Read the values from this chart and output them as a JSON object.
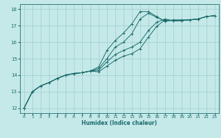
{
  "xlabel": "Humidex (Indice chaleur)",
  "bg_color": "#c5e8e8",
  "line_color": "#1a6b6b",
  "grid_color": "#9ecece",
  "xlim": [
    -0.5,
    23.5
  ],
  "ylim": [
    11.7,
    18.3
  ],
  "xticks": [
    0,
    1,
    2,
    3,
    4,
    5,
    6,
    7,
    8,
    9,
    10,
    11,
    12,
    13,
    14,
    15,
    16,
    17,
    18,
    19,
    20,
    21,
    22,
    23
  ],
  "yticks": [
    12,
    13,
    14,
    15,
    16,
    17,
    18
  ],
  "series1": [
    12.0,
    13.0,
    13.35,
    13.55,
    13.8,
    14.0,
    14.1,
    14.15,
    14.25,
    14.5,
    15.5,
    16.1,
    16.55,
    17.1,
    17.85,
    17.85,
    17.55,
    17.25,
    17.35,
    17.35,
    17.35,
    17.4,
    17.55,
    17.6
  ],
  "series2": [
    12.0,
    13.0,
    13.35,
    13.55,
    13.8,
    14.0,
    14.1,
    14.15,
    14.25,
    14.4,
    15.0,
    15.7,
    16.0,
    16.5,
    17.4,
    17.75,
    17.5,
    17.3,
    17.3,
    17.3,
    17.35,
    17.4,
    17.55,
    17.6
  ],
  "series3": [
    12.0,
    13.0,
    13.35,
    13.55,
    13.8,
    14.0,
    14.1,
    14.15,
    14.25,
    14.3,
    14.8,
    15.25,
    15.5,
    15.7,
    16.0,
    16.7,
    17.2,
    17.4,
    17.3,
    17.3,
    17.35,
    17.4,
    17.55,
    17.6
  ],
  "series4": [
    12.0,
    13.0,
    13.35,
    13.55,
    13.8,
    14.0,
    14.1,
    14.15,
    14.25,
    14.2,
    14.55,
    14.9,
    15.15,
    15.3,
    15.6,
    16.3,
    16.95,
    17.35,
    17.3,
    17.3,
    17.35,
    17.4,
    17.55,
    17.6
  ]
}
